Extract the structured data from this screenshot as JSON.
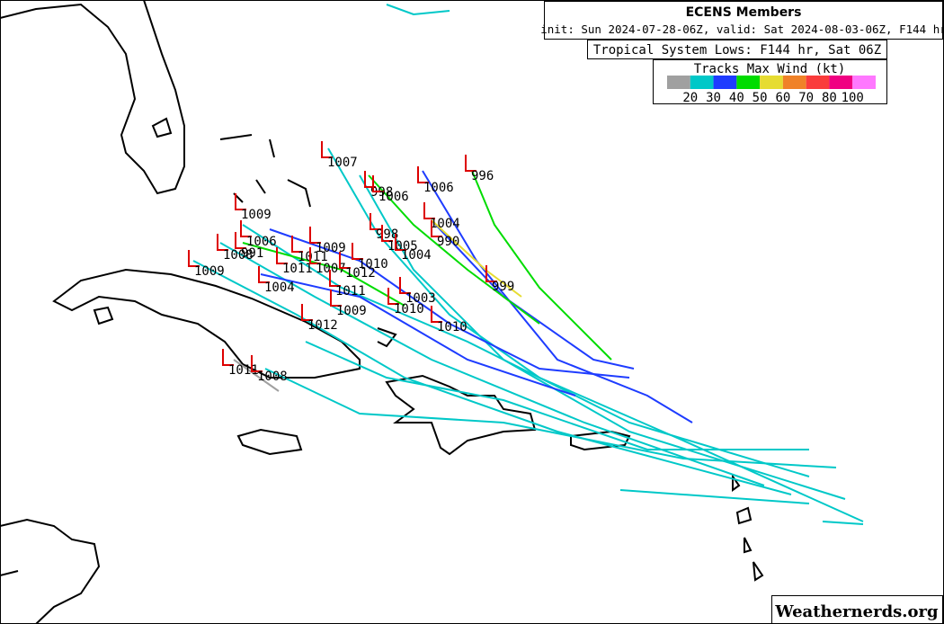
{
  "header": {
    "title": "ECENS Members",
    "init": "init: Sun 2024-07-28-06Z, valid: Sat 2024-08-03-06Z, F144 hr"
  },
  "subtitle": "Tropical System Lows: F144 hr, Sat 06Z",
  "legend": {
    "title": "Tracks Max Wind (kt)",
    "labels": [
      20,
      30,
      40,
      50,
      60,
      70,
      80,
      100
    ],
    "colors": [
      "#a0a0a0",
      "#00c8c8",
      "#1e3cff",
      "#00dc00",
      "#e6dc32",
      "#f08228",
      "#fa3c3c",
      "#f00082",
      "#ff78ff"
    ]
  },
  "lows": [
    "1007",
    "998",
    "1006",
    "1006",
    "996",
    "1009",
    "1004",
    "990",
    "998",
    "1005",
    "1004",
    "1006",
    "1008",
    "991",
    "1009",
    "1011",
    "1011",
    "1009",
    "1007",
    "1012",
    "1010",
    "1004",
    "999",
    "1003",
    "1011",
    "1009",
    "1010",
    "1010",
    "1012",
    "1011",
    "1008"
  ],
  "watermark": "Weathernerds.org"
}
